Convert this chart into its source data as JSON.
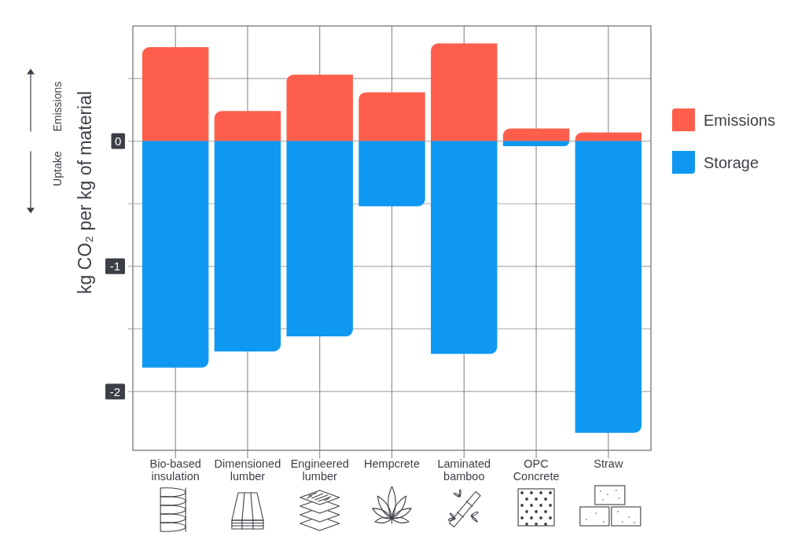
{
  "chart_data": {
    "type": "bar",
    "stacked": true,
    "categories": [
      "Bio-based insulation",
      "Dimensioned lumber",
      "Engineered lumber",
      "Hempcrete",
      "Laminated bamboo",
      "OPC Concrete",
      "Straw"
    ],
    "series": [
      {
        "name": "Emissions",
        "color": "#fe5f4c",
        "values": [
          0.75,
          0.24,
          0.53,
          0.39,
          0.78,
          0.1,
          0.07
        ]
      },
      {
        "name": "Storage",
        "color": "#0f98f2",
        "values": [
          -1.81,
          -1.68,
          -1.56,
          -0.52,
          -1.7,
          -0.04,
          -2.33
        ]
      }
    ],
    "ylabel": "kg CO₂ per kg of material",
    "ylim": [
      -2.47,
      0.92
    ],
    "yticks": [
      -2,
      {
        "value": -1.5,
        "label": null
      },
      -1,
      {
        "value": -0.5,
        "label": null
      },
      0,
      {
        "value": 0.5,
        "label": null
      }
    ],
    "grid": true,
    "legend": "right",
    "annotations": [
      "Emissions",
      "Uptake"
    ]
  }
}
